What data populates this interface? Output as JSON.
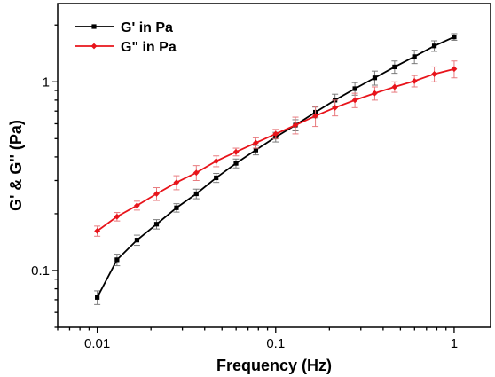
{
  "chart_data": {
    "type": "line",
    "title": "",
    "xlabel": "Frequency (Hz)",
    "ylabel": "G' & G'' (Pa)",
    "x_scale": "log",
    "y_scale": "log",
    "xlim": [
      0.006,
      1.6
    ],
    "ylim": [
      0.05,
      2.6
    ],
    "x_ticks": [
      {
        "value": 0.01,
        "label": "0.01"
      },
      {
        "value": 0.1,
        "label": "0.1"
      },
      {
        "value": 1,
        "label": "1"
      }
    ],
    "y_ticks": [
      {
        "value": 0.1,
        "label": "0.1"
      },
      {
        "value": 1,
        "label": "1"
      }
    ],
    "grid": false,
    "legend_position": "top-left",
    "series": [
      {
        "name": "G' in Pa",
        "color": "#000000",
        "marker": "square",
        "points": [
          {
            "x": 0.01,
            "y": 0.072,
            "err": 0.006
          },
          {
            "x": 0.0129,
            "y": 0.114,
            "err": 0.008
          },
          {
            "x": 0.0167,
            "y": 0.145,
            "err": 0.009
          },
          {
            "x": 0.0215,
            "y": 0.176,
            "err": 0.01
          },
          {
            "x": 0.0278,
            "y": 0.215,
            "err": 0.011
          },
          {
            "x": 0.0359,
            "y": 0.255,
            "err": 0.015
          },
          {
            "x": 0.0464,
            "y": 0.31,
            "err": 0.017
          },
          {
            "x": 0.0599,
            "y": 0.37,
            "err": 0.02
          },
          {
            "x": 0.0774,
            "y": 0.435,
            "err": 0.025
          },
          {
            "x": 0.1,
            "y": 0.51,
            "err": 0.03
          },
          {
            "x": 0.129,
            "y": 0.59,
            "err": 0.04
          },
          {
            "x": 0.167,
            "y": 0.69,
            "err": 0.045
          },
          {
            "x": 0.215,
            "y": 0.8,
            "err": 0.06
          },
          {
            "x": 0.278,
            "y": 0.92,
            "err": 0.07
          },
          {
            "x": 0.359,
            "y": 1.05,
            "err": 0.09
          },
          {
            "x": 0.464,
            "y": 1.2,
            "err": 0.09
          },
          {
            "x": 0.599,
            "y": 1.36,
            "err": 0.11
          },
          {
            "x": 0.774,
            "y": 1.55,
            "err": 0.1
          },
          {
            "x": 1,
            "y": 1.73,
            "err": 0.07
          }
        ]
      },
      {
        "name": "G\" in Pa",
        "color": "#e8141b",
        "marker": "diamond",
        "points": [
          {
            "x": 0.01,
            "y": 0.162,
            "err": 0.01
          },
          {
            "x": 0.0129,
            "y": 0.193,
            "err": 0.01
          },
          {
            "x": 0.0167,
            "y": 0.221,
            "err": 0.012
          },
          {
            "x": 0.0215,
            "y": 0.255,
            "err": 0.02
          },
          {
            "x": 0.0278,
            "y": 0.293,
            "err": 0.025
          },
          {
            "x": 0.0359,
            "y": 0.33,
            "err": 0.03
          },
          {
            "x": 0.0464,
            "y": 0.38,
            "err": 0.025
          },
          {
            "x": 0.0599,
            "y": 0.425,
            "err": 0.02
          },
          {
            "x": 0.0774,
            "y": 0.475,
            "err": 0.03
          },
          {
            "x": 0.1,
            "y": 0.53,
            "err": 0.03
          },
          {
            "x": 0.129,
            "y": 0.59,
            "err": 0.06
          },
          {
            "x": 0.167,
            "y": 0.66,
            "err": 0.08
          },
          {
            "x": 0.215,
            "y": 0.73,
            "err": 0.07
          },
          {
            "x": 0.278,
            "y": 0.8,
            "err": 0.07
          },
          {
            "x": 0.359,
            "y": 0.87,
            "err": 0.07
          },
          {
            "x": 0.464,
            "y": 0.94,
            "err": 0.06
          },
          {
            "x": 0.599,
            "y": 1.01,
            "err": 0.07
          },
          {
            "x": 0.774,
            "y": 1.1,
            "err": 0.1
          },
          {
            "x": 1,
            "y": 1.17,
            "err": 0.12
          }
        ]
      }
    ]
  }
}
